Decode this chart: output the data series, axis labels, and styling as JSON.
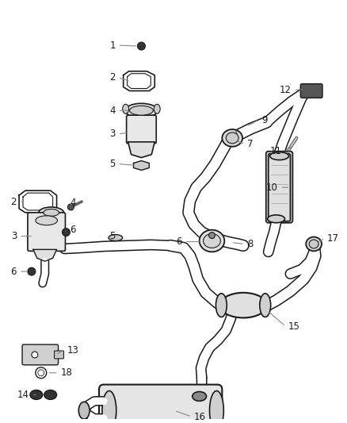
{
  "bg_color": "#ffffff",
  "line_color": "#1a1a1a",
  "label_color": "#1a1a1a",
  "leader_color": "#888888",
  "fig_width": 4.38,
  "fig_height": 5.33,
  "dpi": 100,
  "lw": 1.2,
  "pipe_lw": 6.0,
  "pipe_inner_lw": 4.5
}
